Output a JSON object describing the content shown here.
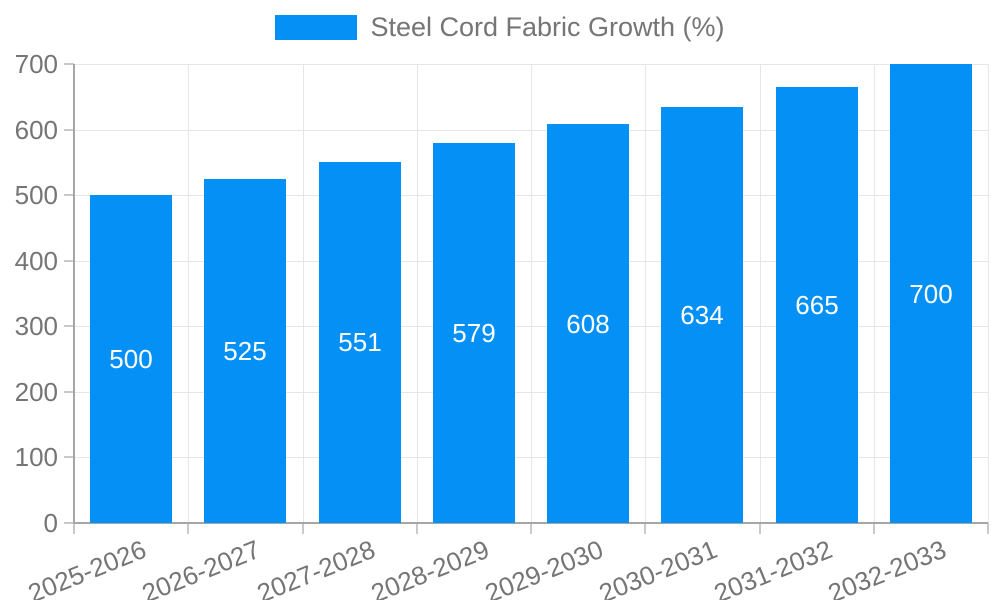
{
  "legend": {
    "label": "Steel Cord Fabric Growth (%)",
    "swatch_color": "#0590F6"
  },
  "colors": {
    "bar": "#0590F6",
    "bar_label": "#FFFFFF",
    "axis_text": "#757575",
    "axis_line": "#A6A6A6",
    "gridline": "#E6E6E6",
    "tick": "#C9C9C9",
    "background": "#FFFFFF"
  },
  "chart_data": {
    "type": "bar",
    "title": "Steel Cord Fabric Growth (%)",
    "categories": [
      "2025-2026",
      "2026-2027",
      "2027-2028",
      "2028-2029",
      "2029-2030",
      "2030-2031",
      "2031-2032",
      "2032-2033"
    ],
    "series": [
      {
        "name": "Steel Cord Fabric Growth (%)",
        "values": [
          500,
          525,
          551,
          579,
          608,
          634,
          665,
          700
        ]
      }
    ],
    "values": [
      500,
      525,
      551,
      579,
      608,
      634,
      665,
      700
    ],
    "bar_value_labels": [
      "500",
      "525",
      "551",
      "579",
      "608",
      "634",
      "665",
      "700"
    ],
    "xlabel": "",
    "ylabel": "",
    "ylim": [
      0,
      700
    ],
    "yticks": [
      0,
      100,
      200,
      300,
      400,
      500,
      600,
      700
    ],
    "grid": true,
    "legend_position": "top",
    "x_label_rotation_deg": -22
  }
}
